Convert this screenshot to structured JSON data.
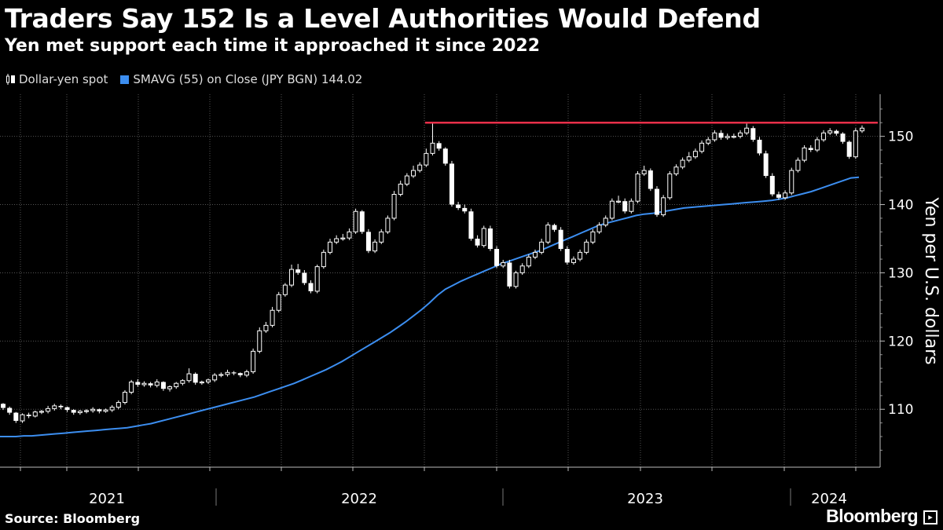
{
  "header": {
    "title": "Traders Say 152 Is a Level Authorities Would Defend",
    "subtitle": "Yen met support each time it approached it since 2022"
  },
  "footer": {
    "source": "Source: Bloomberg",
    "brand": "Bloomberg"
  },
  "colors": {
    "background": "#000000",
    "candle": "#ffffff",
    "sma": "#3c8ef0",
    "level_line": "#e8304a",
    "grid": "#555555"
  },
  "chart_data": {
    "type": "candlestick",
    "title": "Traders Say 152 Is a Level Authorities Would Defend",
    "subtitle": "Yen met support each time it approached it since 2022",
    "ylabel": "Yen per U.S. dollars",
    "xlabel": "",
    "ylim": [
      102,
      155
    ],
    "yticks": [
      110,
      120,
      130,
      140,
      150
    ],
    "x_labels": [
      "2021",
      "2022",
      "2023",
      "2024"
    ],
    "grid": true,
    "legend_position": "top-left",
    "legend": [
      {
        "name": "Dollar-yen spot",
        "style": "candlestick"
      },
      {
        "name": "SMAVG (55)  on Close (JPY BGN) 144.02",
        "style": "line"
      }
    ],
    "reference_line": {
      "value": 152,
      "color": "#e8304a",
      "start_period": "2022-10"
    },
    "series": [
      {
        "name": "Dollar-yen spot",
        "kind": "candle",
        "close": [
          110.2,
          109.5,
          108.3,
          109.2,
          109.0,
          109.6,
          109.7,
          110.1,
          110.5,
          110.3,
          109.9,
          109.5,
          109.7,
          109.8,
          110.0,
          109.7,
          109.9,
          110.3,
          111.0,
          112.5,
          114.0,
          113.6,
          113.8,
          113.5,
          114.0,
          113.0,
          113.3,
          113.8,
          114.2,
          115.2,
          113.9,
          114.0,
          114.3,
          115.0,
          115.1,
          115.4,
          115.3,
          115.0,
          115.5,
          118.5,
          121.5,
          122.3,
          124.5,
          126.8,
          128.2,
          130.5,
          130.0,
          128.5,
          127.3,
          130.9,
          133.0,
          134.5,
          135.0,
          135.1,
          136.0,
          139.0,
          136.0,
          133.2,
          134.5,
          136.0,
          138.0,
          141.5,
          143.0,
          144.2,
          145.0,
          145.8,
          147.5,
          149.0,
          148.2,
          146.0,
          140.0,
          139.5,
          139.0,
          135.0,
          134.0,
          136.5,
          133.5,
          131.0,
          131.5,
          128.0,
          130.0,
          131.0,
          132.3,
          133.0,
          134.5,
          137.0,
          136.3,
          133.5,
          131.5,
          132.0,
          133.0,
          134.5,
          136.0,
          137.0,
          138.0,
          140.5,
          140.5,
          139.0,
          140.5,
          144.5,
          145.0,
          142.3,
          138.5,
          141.0,
          144.5,
          145.5,
          146.5,
          147.0,
          147.8,
          149.0,
          149.5,
          150.5,
          149.8,
          150.0,
          150.0,
          150.5,
          151.2,
          149.5,
          147.5,
          144.2,
          141.5,
          141.0,
          141.7,
          145.0,
          146.5,
          148.3,
          148.0,
          149.5,
          150.5,
          150.8,
          150.4,
          149.2,
          147.0,
          150.8,
          151.2
        ],
        "open": [
          110.8,
          110.2,
          109.5,
          108.3,
          109.2,
          109.0,
          109.6,
          109.7,
          110.1,
          110.5,
          110.3,
          109.9,
          109.5,
          109.7,
          109.8,
          110.0,
          109.7,
          109.9,
          110.3,
          111.0,
          112.5,
          114.0,
          113.6,
          113.8,
          113.5,
          114.0,
          113.0,
          113.3,
          113.8,
          114.2,
          115.2,
          113.9,
          114.0,
          114.3,
          115.0,
          115.1,
          115.4,
          115.3,
          115.0,
          115.5,
          118.5,
          121.5,
          122.3,
          124.5,
          126.8,
          128.2,
          130.5,
          130.0,
          128.5,
          127.3,
          130.9,
          133.0,
          134.5,
          135.0,
          135.1,
          136.0,
          139.0,
          136.0,
          133.2,
          134.5,
          136.0,
          138.0,
          141.5,
          143.0,
          144.2,
          145.0,
          145.8,
          147.5,
          149.0,
          148.2,
          146.0,
          140.0,
          139.5,
          139.0,
          135.0,
          134.0,
          136.5,
          133.5,
          131.0,
          131.5,
          128.0,
          130.0,
          131.0,
          132.3,
          133.0,
          134.5,
          137.0,
          136.3,
          133.5,
          131.5,
          132.0,
          133.0,
          134.5,
          136.0,
          137.0,
          138.0,
          140.5,
          140.5,
          139.0,
          140.5,
          144.5,
          145.0,
          142.3,
          138.5,
          141.0,
          144.5,
          145.5,
          146.5,
          147.0,
          147.8,
          149.0,
          149.5,
          150.5,
          149.8,
          150.0,
          150.0,
          150.5,
          151.2,
          149.5,
          147.5,
          144.2,
          141.5,
          141.0,
          141.7,
          145.0,
          146.5,
          148.3,
          148.0,
          149.5,
          150.5,
          150.8,
          150.4,
          149.2,
          147.0,
          150.8
        ],
        "high": [
          110.9,
          110.4,
          109.6,
          109.4,
          109.5,
          109.8,
          109.9,
          110.5,
          110.8,
          110.7,
          110.4,
          110.0,
          109.9,
          110.0,
          110.3,
          110.1,
          110.1,
          110.6,
          111.3,
          112.8,
          114.3,
          114.4,
          114.1,
          114.0,
          114.4,
          114.1,
          113.5,
          114.0,
          114.4,
          116.0,
          115.4,
          114.2,
          114.5,
          115.3,
          115.4,
          115.8,
          115.6,
          115.4,
          115.8,
          118.9,
          122.0,
          122.8,
          125.0,
          127.2,
          128.5,
          131.2,
          131.3,
          130.4,
          128.9,
          131.2,
          133.4,
          135.0,
          135.5,
          135.7,
          136.5,
          139.4,
          139.2,
          136.4,
          134.9,
          136.4,
          138.4,
          142.0,
          143.5,
          144.6,
          145.7,
          146.2,
          148.2,
          151.9,
          149.3,
          148.4,
          146.4,
          140.4,
          140.0,
          139.4,
          135.5,
          136.9,
          136.9,
          133.9,
          131.9,
          131.9,
          130.3,
          131.4,
          132.7,
          133.4,
          135.0,
          137.4,
          137.2,
          136.7,
          133.9,
          132.4,
          133.4,
          134.9,
          136.4,
          137.4,
          138.4,
          140.9,
          141.3,
          140.9,
          140.9,
          144.9,
          145.7,
          145.3,
          142.7,
          141.4,
          144.9,
          145.9,
          146.9,
          147.7,
          148.2,
          149.4,
          149.9,
          150.9,
          150.9,
          150.4,
          150.4,
          150.9,
          151.9,
          151.5,
          149.9,
          147.9,
          144.6,
          141.9,
          142.1,
          145.4,
          146.9,
          148.7,
          148.7,
          149.9,
          150.9,
          151.2,
          151.0,
          150.6,
          149.4,
          151.2,
          151.6
        ],
        "low": [
          109.9,
          109.2,
          108.0,
          108.0,
          108.7,
          108.8,
          109.3,
          109.4,
          109.8,
          110.0,
          109.6,
          109.2,
          109.2,
          109.4,
          109.5,
          109.4,
          109.5,
          109.6,
          110.0,
          110.7,
          112.2,
          113.3,
          113.3,
          113.2,
          113.2,
          112.7,
          112.6,
          113.0,
          113.5,
          113.9,
          113.6,
          113.6,
          113.7,
          114.0,
          114.7,
          114.8,
          115.0,
          114.7,
          114.7,
          115.2,
          118.2,
          121.2,
          122.0,
          124.2,
          126.5,
          127.9,
          129.7,
          128.2,
          127.0,
          127.0,
          130.6,
          132.7,
          134.2,
          134.7,
          134.8,
          135.7,
          135.7,
          132.9,
          132.9,
          134.2,
          135.7,
          137.7,
          141.2,
          142.7,
          143.9,
          144.7,
          145.5,
          147.2,
          147.9,
          145.7,
          139.7,
          139.2,
          138.7,
          134.7,
          133.7,
          133.7,
          133.2,
          130.7,
          130.7,
          127.7,
          127.7,
          129.7,
          130.7,
          132.0,
          132.7,
          134.2,
          136.0,
          133.2,
          131.2,
          131.2,
          131.7,
          132.7,
          134.2,
          135.7,
          136.7,
          137.7,
          140.2,
          138.7,
          138.7,
          140.2,
          144.2,
          142.0,
          138.2,
          138.2,
          140.7,
          144.2,
          145.2,
          146.2,
          146.7,
          147.5,
          148.7,
          149.2,
          149.5,
          149.5,
          149.7,
          149.7,
          150.2,
          149.2,
          147.2,
          143.9,
          141.2,
          140.7,
          140.7,
          141.4,
          144.7,
          146.2,
          147.7,
          147.7,
          149.2,
          150.2,
          150.1,
          148.9,
          146.7,
          146.7,
          150.5
        ]
      },
      {
        "name": "SMAVG (55)  on Close (JPY BGN) 144.02",
        "kind": "line",
        "values": [
          106.0,
          106.0,
          106.0,
          106.1,
          106.1,
          106.2,
          106.3,
          106.4,
          106.5,
          106.6,
          106.7,
          106.8,
          106.9,
          107.0,
          107.1,
          107.2,
          107.3,
          107.5,
          107.7,
          107.9,
          108.2,
          108.5,
          108.8,
          109.1,
          109.4,
          109.7,
          110.0,
          110.3,
          110.6,
          110.9,
          111.2,
          111.5,
          111.8,
          112.2,
          112.6,
          113.0,
          113.4,
          113.8,
          114.3,
          114.8,
          115.3,
          115.8,
          116.4,
          117.0,
          117.7,
          118.4,
          119.1,
          119.8,
          120.5,
          121.2,
          122.0,
          122.8,
          123.7,
          124.6,
          125.6,
          126.7,
          127.6,
          128.2,
          128.8,
          129.3,
          129.8,
          130.3,
          130.8,
          131.3,
          131.7,
          132.1,
          132.5,
          132.9,
          133.3,
          133.8,
          134.3,
          134.8,
          135.3,
          135.8,
          136.3,
          136.8,
          137.2,
          137.5,
          137.8,
          138.1,
          138.4,
          138.6,
          138.7,
          138.9,
          139.1,
          139.3,
          139.5,
          139.6,
          139.7,
          139.8,
          139.9,
          140.0,
          140.1,
          140.2,
          140.3,
          140.4,
          140.5,
          140.6,
          140.8,
          141.0,
          141.3,
          141.6,
          141.9,
          142.3,
          142.7,
          143.1,
          143.5,
          143.9,
          144.0
        ]
      }
    ]
  }
}
